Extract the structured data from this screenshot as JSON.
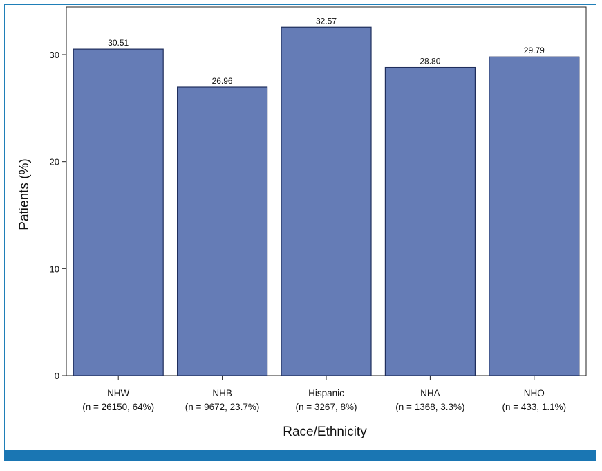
{
  "colors": {
    "bar_fill": "#657cb6",
    "bar_stroke": "#1f2e5c",
    "frame_border": "#1f7fb8",
    "footer_bar": "#1a76b3"
  },
  "chart_data": {
    "type": "bar",
    "categories": [
      "NHW",
      "NHB",
      "Hispanic",
      "NHA",
      "NHO"
    ],
    "category_sublabels": [
      "(n = 26150, 64%)",
      "(n = 9672, 23.7%)",
      "(n = 3267, 8%)",
      "(n = 1368, 3.3%)",
      "(n = 433, 1.1%)"
    ],
    "values": [
      30.51,
      26.96,
      32.57,
      28.8,
      29.79
    ],
    "value_labels": [
      "30.51",
      "26.96",
      "32.57",
      "28.80",
      "29.79"
    ],
    "title": "",
    "xlabel": "Race/Ethnicity",
    "ylabel": "Patients (%)",
    "ylim": [
      0,
      34
    ],
    "yticks": [
      0,
      10,
      20,
      30
    ],
    "grid": false,
    "legend": "none"
  }
}
